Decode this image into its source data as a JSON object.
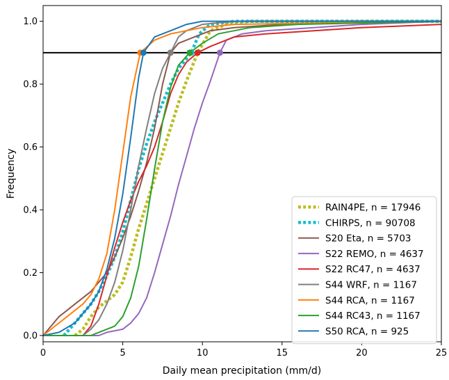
{
  "chart_data": {
    "type": "line",
    "title": "",
    "xlabel": "Daily mean precipitation (mm/d)",
    "ylabel": "Frequency",
    "xlim": [
      0,
      25
    ],
    "ylim": [
      -0.02,
      1.05
    ],
    "xticks": [
      0,
      5,
      10,
      15,
      20,
      25
    ],
    "yticks": [
      0.0,
      0.2,
      0.4,
      0.6,
      0.8,
      1.0
    ],
    "xtick_labels": [
      "0",
      "5",
      "10",
      "15",
      "20",
      "25"
    ],
    "ytick_labels": [
      "0.0",
      "0.2",
      "0.4",
      "0.6",
      "0.8",
      "1.0"
    ],
    "grid": false,
    "legend_position": "lower-right",
    "reference_line": {
      "y": 0.9,
      "color": "#000000"
    },
    "series": [
      {
        "name": "RAIN4PE, n = 17946",
        "color": "#bcbd22",
        "style": "dotted",
        "marker_x": 9.7,
        "points": [
          [
            2.0,
            0
          ],
          [
            2.5,
            0.02
          ],
          [
            3.0,
            0.06
          ],
          [
            3.5,
            0.09
          ],
          [
            4.5,
            0.13
          ],
          [
            5.0,
            0.17
          ],
          [
            5.5,
            0.25
          ],
          [
            6.0,
            0.34
          ],
          [
            6.5,
            0.42
          ],
          [
            7.0,
            0.5
          ],
          [
            7.5,
            0.58
          ],
          [
            8.0,
            0.66
          ],
          [
            8.5,
            0.74
          ],
          [
            9.0,
            0.81
          ],
          [
            9.7,
            0.9
          ],
          [
            10.5,
            0.97
          ],
          [
            11.5,
            0.99
          ],
          [
            13,
            1.0
          ],
          [
            25,
            1.0
          ]
        ]
      },
      {
        "name": "CHIRPS, n = 90708",
        "color": "#17becf",
        "style": "dotted",
        "marker_x": 9.3,
        "points": [
          [
            1.3,
            0
          ],
          [
            2.0,
            0.04
          ],
          [
            2.5,
            0.07
          ],
          [
            3.0,
            0.1
          ],
          [
            3.5,
            0.14
          ],
          [
            4.0,
            0.19
          ],
          [
            4.5,
            0.25
          ],
          [
            5.0,
            0.33
          ],
          [
            5.5,
            0.43
          ],
          [
            6.0,
            0.53
          ],
          [
            6.5,
            0.61
          ],
          [
            7.0,
            0.68
          ],
          [
            7.5,
            0.74
          ],
          [
            8.0,
            0.8
          ],
          [
            8.5,
            0.85
          ],
          [
            9.3,
            0.9
          ],
          [
            9.8,
            0.96
          ],
          [
            10.5,
            0.99
          ],
          [
            12,
            1.0
          ],
          [
            25,
            1.0
          ]
        ]
      },
      {
        "name": "S20 Eta, n = 5703",
        "color": "#8c564b",
        "style": "solid",
        "marker_x": 8.0,
        "points": [
          [
            0,
            0
          ],
          [
            0.5,
            0.03
          ],
          [
            1.0,
            0.06
          ],
          [
            1.5,
            0.08
          ],
          [
            2.0,
            0.1
          ],
          [
            2.5,
            0.12
          ],
          [
            3.0,
            0.14
          ],
          [
            3.5,
            0.17
          ],
          [
            4.0,
            0.2
          ],
          [
            4.5,
            0.25
          ],
          [
            5.0,
            0.31
          ],
          [
            5.5,
            0.38
          ],
          [
            6.0,
            0.46
          ],
          [
            6.5,
            0.55
          ],
          [
            7.0,
            0.66
          ],
          [
            7.5,
            0.8
          ],
          [
            8.0,
            0.9
          ],
          [
            8.5,
            0.93
          ],
          [
            9.5,
            0.95
          ],
          [
            10.5,
            0.97
          ],
          [
            12,
            0.98
          ],
          [
            15,
            0.99
          ],
          [
            25,
            1.0
          ]
        ]
      },
      {
        "name": "S22 REMO, n = 4637",
        "color": "#9467bd",
        "style": "solid",
        "marker_x": 11.1,
        "points": [
          [
            0,
            0
          ],
          [
            3.5,
            0
          ],
          [
            4.0,
            0.01
          ],
          [
            5.0,
            0.02
          ],
          [
            5.5,
            0.04
          ],
          [
            6.0,
            0.07
          ],
          [
            6.5,
            0.12
          ],
          [
            7.0,
            0.2
          ],
          [
            7.5,
            0.29
          ],
          [
            8.0,
            0.38
          ],
          [
            8.5,
            0.48
          ],
          [
            9.0,
            0.57
          ],
          [
            9.5,
            0.66
          ],
          [
            10.0,
            0.74
          ],
          [
            10.5,
            0.81
          ],
          [
            11.1,
            0.9
          ],
          [
            11.5,
            0.94
          ],
          [
            12.5,
            0.96
          ],
          [
            14,
            0.97
          ],
          [
            17,
            0.98
          ],
          [
            20,
            0.99
          ],
          [
            25,
            1.0
          ]
        ]
      },
      {
        "name": "S22 RC47, n = 4637",
        "color": "#d62728",
        "style": "solid",
        "marker_x": 9.7,
        "points": [
          [
            0,
            0
          ],
          [
            2.5,
            0
          ],
          [
            3.0,
            0.03
          ],
          [
            3.5,
            0.1
          ],
          [
            4.0,
            0.19
          ],
          [
            4.5,
            0.28
          ],
          [
            5.0,
            0.36
          ],
          [
            5.5,
            0.43
          ],
          [
            6.0,
            0.49
          ],
          [
            6.5,
            0.54
          ],
          [
            7.0,
            0.6
          ],
          [
            7.5,
            0.68
          ],
          [
            8.0,
            0.77
          ],
          [
            8.5,
            0.83
          ],
          [
            9.0,
            0.87
          ],
          [
            9.7,
            0.9
          ],
          [
            10.5,
            0.92
          ],
          [
            12,
            0.95
          ],
          [
            14,
            0.96
          ],
          [
            17,
            0.97
          ],
          [
            20,
            0.98
          ],
          [
            25,
            0.99
          ]
        ]
      },
      {
        "name": "S44 WRF, n = 1167",
        "color": "#7f7f7f",
        "style": "solid",
        "marker_x": 8.0,
        "points": [
          [
            0,
            0
          ],
          [
            2.5,
            0
          ],
          [
            3.0,
            0.02
          ],
          [
            3.5,
            0.05
          ],
          [
            4.0,
            0.1
          ],
          [
            4.5,
            0.17
          ],
          [
            5.0,
            0.27
          ],
          [
            5.5,
            0.4
          ],
          [
            6.0,
            0.54
          ],
          [
            6.5,
            0.66
          ],
          [
            7.0,
            0.77
          ],
          [
            7.5,
            0.85
          ],
          [
            8.0,
            0.9
          ],
          [
            8.5,
            0.95
          ],
          [
            9.0,
            0.97
          ],
          [
            10,
            0.99
          ],
          [
            12,
            1.0
          ],
          [
            25,
            1.0
          ]
        ]
      },
      {
        "name": "S44 RCA, n = 1167",
        "color": "#ff7f0e",
        "style": "solid",
        "marker_x": 6.1,
        "points": [
          [
            0,
            0
          ],
          [
            0.5,
            0.02
          ],
          [
            1.0,
            0.04
          ],
          [
            1.5,
            0.06
          ],
          [
            2.0,
            0.08
          ],
          [
            2.5,
            0.1
          ],
          [
            3.0,
            0.13
          ],
          [
            3.5,
            0.18
          ],
          [
            4.0,
            0.26
          ],
          [
            4.5,
            0.4
          ],
          [
            5.0,
            0.58
          ],
          [
            5.5,
            0.76
          ],
          [
            6.1,
            0.9
          ],
          [
            7.0,
            0.94
          ],
          [
            8.0,
            0.96
          ],
          [
            9.0,
            0.97
          ],
          [
            10,
            0.98
          ],
          [
            12,
            0.99
          ],
          [
            25,
            1.0
          ]
        ]
      },
      {
        "name": "S44 RC43, n = 1167",
        "color": "#2ca02c",
        "style": "solid",
        "marker_x": 9.2,
        "points": [
          [
            0,
            0
          ],
          [
            3.0,
            0
          ],
          [
            3.5,
            0.01
          ],
          [
            4.0,
            0.02
          ],
          [
            4.5,
            0.03
          ],
          [
            5.0,
            0.06
          ],
          [
            5.5,
            0.12
          ],
          [
            6.0,
            0.22
          ],
          [
            6.5,
            0.37
          ],
          [
            7.0,
            0.53
          ],
          [
            7.5,
            0.68
          ],
          [
            8.0,
            0.79
          ],
          [
            8.5,
            0.86
          ],
          [
            9.2,
            0.9
          ],
          [
            10,
            0.93
          ],
          [
            11,
            0.96
          ],
          [
            13,
            0.98
          ],
          [
            16,
            0.99
          ],
          [
            25,
            1.0
          ]
        ]
      },
      {
        "name": "S50 RCA, n = 925",
        "color": "#1f77b4",
        "style": "solid",
        "marker_x": 6.3,
        "points": [
          [
            0,
            0
          ],
          [
            1.0,
            0.01
          ],
          [
            2.0,
            0.04
          ],
          [
            2.5,
            0.07
          ],
          [
            3.0,
            0.1
          ],
          [
            3.5,
            0.14
          ],
          [
            4.0,
            0.21
          ],
          [
            4.5,
            0.31
          ],
          [
            5.0,
            0.45
          ],
          [
            5.5,
            0.63
          ],
          [
            6.0,
            0.82
          ],
          [
            6.3,
            0.9
          ],
          [
            7.0,
            0.95
          ],
          [
            8.0,
            0.97
          ],
          [
            9.0,
            0.99
          ],
          [
            10,
            1.0
          ],
          [
            25,
            1.0
          ]
        ]
      }
    ]
  }
}
